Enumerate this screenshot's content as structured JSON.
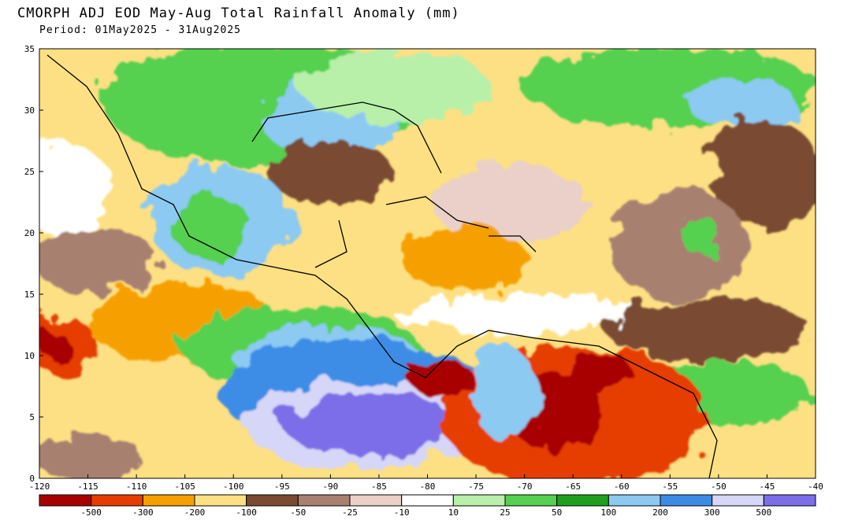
{
  "title": "CMORPH ADJ EOD May-Aug Total Rainfall Anomaly (mm)",
  "subtitle": "Period: 01May2025 - 31Aug2025",
  "map": {
    "xlim": [
      -120,
      -40
    ],
    "ylim": [
      0,
      35
    ],
    "xticks": [
      -120,
      -115,
      -110,
      -105,
      -100,
      -95,
      -90,
      -85,
      -80,
      -75,
      -70,
      -65,
      -60,
      -55,
      -50,
      -45,
      -40
    ],
    "yticks": [
      0,
      5,
      10,
      15,
      20,
      25,
      30,
      35
    ]
  },
  "colorbar": {
    "colors": [
      "#a80000",
      "#e63c00",
      "#f5a000",
      "#fde083",
      "#7a4b30",
      "#a88070",
      "#ead0c8",
      "#ffffff",
      "#b8f0aa",
      "#55d050",
      "#1ea01e",
      "#8ccaf2",
      "#3c8ce6",
      "#d6d6f8",
      "#7b6ee8"
    ],
    "labels": [
      -500,
      -300,
      -200,
      -100,
      -50,
      -25,
      -10,
      10,
      25,
      50,
      100,
      200,
      300,
      500
    ]
  }
}
